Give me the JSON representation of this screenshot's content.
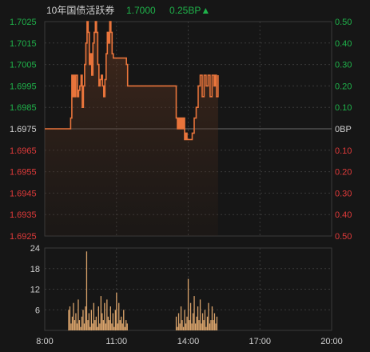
{
  "header": {
    "name": "10年国债活跃券",
    "price": "1.7000",
    "change": "0.25BP▲"
  },
  "colors": {
    "background": "#161616",
    "grid": "#3a3a3a",
    "up": "#1fb24a",
    "down": "#e03a3a",
    "neutral": "#d0d0d0",
    "line": "#e8743b",
    "volume": "#d9a36b"
  },
  "chart_data": [
    {
      "type": "line",
      "title": "10年国债活跃券",
      "x_ticks": [
        "8:00",
        "11:00",
        "14:00",
        "17:00",
        "20:00"
      ],
      "x_range": [
        "8:00",
        "20:00"
      ],
      "y_left_ticks": [
        "1.7025",
        "1.7015",
        "1.7005",
        "1.6995",
        "1.6985",
        "1.6975",
        "1.6965",
        "1.6955",
        "1.6945",
        "1.6935",
        "1.6925"
      ],
      "y_right_ticks": [
        "0.50",
        "0.40",
        "0.30",
        "0.20",
        "0.10",
        "0BP",
        "0.10",
        "0.20",
        "0.30",
        "0.40",
        "0.50"
      ],
      "ylim": [
        1.6925,
        1.7025
      ],
      "base": 1.6975,
      "grid": true,
      "series": [
        {
          "x": [
            "08:00",
            "09:00",
            "09:05",
            "09:08",
            "09:10",
            "09:12",
            "09:15",
            "09:18",
            "09:22",
            "09:25",
            "09:28",
            "09:31",
            "09:34",
            "09:37",
            "09:40",
            "09:43",
            "09:46",
            "09:49",
            "09:52",
            "09:55",
            "09:58",
            "10:01",
            "10:04",
            "10:07",
            "10:10",
            "10:13",
            "10:16",
            "10:19",
            "10:22",
            "10:25",
            "10:28",
            "10:31",
            "10:34",
            "10:37",
            "10:40",
            "10:43",
            "10:46",
            "10:49",
            "10:52",
            "10:55",
            "10:58",
            "11:01",
            "11:04",
            "11:07",
            "11:10",
            "11:13",
            "11:16",
            "11:19",
            "11:22",
            "11:25",
            "11:28",
            "13:30",
            "13:33",
            "13:36",
            "13:39",
            "13:42",
            "13:45",
            "13:48",
            "13:51",
            "13:54",
            "13:57",
            "14:00",
            "14:05",
            "14:10",
            "14:15",
            "14:20",
            "14:25",
            "14:30",
            "14:35",
            "14:40",
            "14:45",
            "14:50",
            "14:55",
            "15:00",
            "15:05",
            "15:08",
            "15:11",
            "15:15"
          ],
          "y": [
            1.6975,
            1.6975,
            1.698,
            1.7,
            1.699,
            1.7,
            1.699,
            1.7,
            1.699,
            1.6993,
            1.6995,
            1.7,
            1.6985,
            1.6995,
            1.7005,
            1.7015,
            1.7025,
            1.702,
            1.7005,
            1.701,
            1.7,
            1.7015,
            1.702,
            1.7025,
            1.702,
            1.7005,
            1.6995,
            1.6998,
            1.7,
            1.6995,
            1.699,
            1.6998,
            1.701,
            1.702,
            1.7015,
            1.7025,
            1.702,
            1.701,
            1.7008,
            1.7008,
            1.7008,
            1.7008,
            1.7008,
            1.7008,
            1.7008,
            1.7008,
            1.7008,
            1.7008,
            1.7008,
            1.7005,
            1.6995,
            1.698,
            1.6975,
            1.698,
            1.6975,
            1.698,
            1.6975,
            1.698,
            1.697,
            1.6973,
            1.697,
            1.697,
            1.697,
            1.6973,
            1.698,
            1.6985,
            1.6995,
            1.7,
            1.699,
            1.7,
            1.6995,
            1.7,
            1.699,
            1.7,
            1.6995,
            1.7,
            1.699,
            1.7
          ]
        }
      ]
    },
    {
      "type": "bar",
      "title": "",
      "x_ticks": [
        "8:00",
        "11:00",
        "14:00",
        "17:00",
        "20:00"
      ],
      "x_range": [
        "8:00",
        "20:00"
      ],
      "y_ticks": [
        24,
        18,
        12,
        6
      ],
      "ylim": [
        0,
        24
      ],
      "series": [
        {
          "x": [
            "09:00",
            "09:03",
            "09:06",
            "09:09",
            "09:12",
            "09:15",
            "09:18",
            "09:21",
            "09:24",
            "09:27",
            "09:30",
            "09:33",
            "09:36",
            "09:39",
            "09:42",
            "09:45",
            "09:48",
            "09:51",
            "09:54",
            "09:57",
            "10:00",
            "10:03",
            "10:06",
            "10:09",
            "10:12",
            "10:15",
            "10:18",
            "10:21",
            "10:24",
            "10:27",
            "10:30",
            "10:33",
            "10:36",
            "10:39",
            "10:42",
            "10:45",
            "10:48",
            "10:51",
            "10:54",
            "10:57",
            "11:00",
            "11:03",
            "11:06",
            "11:09",
            "11:12",
            "11:15",
            "11:18",
            "11:21",
            "11:24",
            "11:27",
            "13:30",
            "13:33",
            "13:36",
            "13:39",
            "13:42",
            "13:45",
            "13:48",
            "13:51",
            "13:54",
            "13:57",
            "14:00",
            "14:03",
            "14:06",
            "14:09",
            "14:12",
            "14:15",
            "14:18",
            "14:21",
            "14:24",
            "14:27",
            "14:30",
            "14:33",
            "14:36",
            "14:39",
            "14:42",
            "14:45",
            "14:48",
            "14:51",
            "14:54",
            "14:57",
            "15:00",
            "15:03",
            "15:06",
            "15:09",
            "15:12"
          ],
          "values": [
            6,
            7,
            2,
            4,
            8,
            3,
            5,
            2,
            9,
            3,
            1,
            4,
            6,
            2,
            7,
            23,
            3,
            5,
            1,
            6,
            2,
            8,
            3,
            4,
            1,
            7,
            2,
            10,
            5,
            3,
            8,
            2,
            9,
            4,
            3,
            7,
            2,
            5,
            1,
            6,
            11,
            2,
            8,
            3,
            4,
            2,
            6,
            1,
            3,
            2,
            4,
            1,
            5,
            2,
            7,
            3,
            1,
            6,
            2,
            4,
            15,
            3,
            8,
            2,
            5,
            10,
            2,
            4,
            7,
            3,
            9,
            2,
            5,
            3,
            6,
            1,
            4,
            8,
            2,
            3,
            7,
            3,
            5,
            2,
            4
          ]
        }
      ]
    }
  ]
}
